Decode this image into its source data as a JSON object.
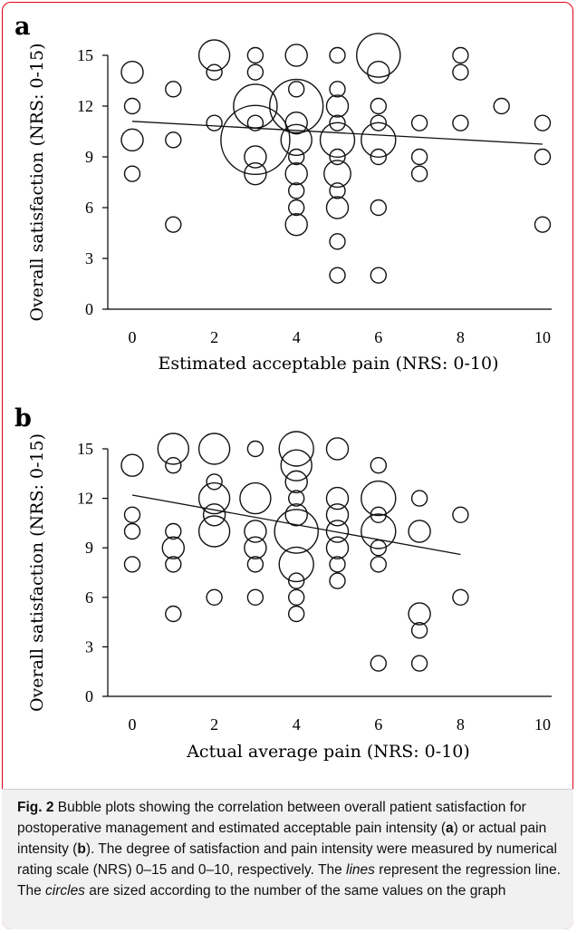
{
  "figure": {
    "caption_label": "Fig. 2",
    "caption_pre": " Bubble plots showing the correlation between overall patient satisfaction for postoperative management and estimated acceptable pain intensity (",
    "caption_a": "a",
    "caption_mid": ") or actual pain intensity (",
    "caption_b": "b",
    "caption_post1": "). The degree of satisfaction and pain intensity were measured by numerical rating scale (NRS) 0–15 and 0–10, respectively. The ",
    "caption_lines": "lines",
    "caption_post2": " represent the regression line. The ",
    "caption_circles": "circles",
    "caption_post3": " are sized according to the number of the same values on the graph"
  },
  "colors": {
    "frame": "#e2001a",
    "caption_bg": "#f1f1f1",
    "ink": "#111111"
  },
  "chart_data": [
    {
      "type": "scatter",
      "panel_label": "a",
      "xlabel": "Estimated acceptable pain (NRS: 0-10)",
      "ylabel": "Overall satisfaction (NRS: 0-15)",
      "xlim": [
        0,
        10
      ],
      "ylim": [
        0,
        15
      ],
      "xticks": [
        0,
        2,
        4,
        6,
        8,
        10
      ],
      "yticks": [
        0,
        3,
        6,
        9,
        12,
        15
      ],
      "grid": false,
      "regression": {
        "x": [
          0,
          10
        ],
        "y": [
          11.1,
          9.75
        ]
      },
      "points": [
        {
          "x": 0,
          "y": 14,
          "n": 2
        },
        {
          "x": 0,
          "y": 12,
          "n": 1
        },
        {
          "x": 0,
          "y": 10,
          "n": 2
        },
        {
          "x": 0,
          "y": 8,
          "n": 1
        },
        {
          "x": 1,
          "y": 13,
          "n": 1
        },
        {
          "x": 1,
          "y": 10,
          "n": 1
        },
        {
          "x": 1,
          "y": 5,
          "n": 1
        },
        {
          "x": 2,
          "y": 15,
          "n": 4
        },
        {
          "x": 2,
          "y": 14,
          "n": 1
        },
        {
          "x": 2,
          "y": 11,
          "n": 1
        },
        {
          "x": 3,
          "y": 15,
          "n": 1
        },
        {
          "x": 3,
          "y": 14,
          "n": 1
        },
        {
          "x": 3,
          "y": 12,
          "n": 8
        },
        {
          "x": 3,
          "y": 11,
          "n": 1
        },
        {
          "x": 3,
          "y": 10,
          "n": 20
        },
        {
          "x": 3,
          "y": 9,
          "n": 2
        },
        {
          "x": 3,
          "y": 8,
          "n": 2
        },
        {
          "x": 4,
          "y": 15,
          "n": 2
        },
        {
          "x": 4,
          "y": 13,
          "n": 1
        },
        {
          "x": 4,
          "y": 12,
          "n": 12
        },
        {
          "x": 4,
          "y": 11,
          "n": 2
        },
        {
          "x": 4,
          "y": 10,
          "n": 4
        },
        {
          "x": 4,
          "y": 9,
          "n": 1
        },
        {
          "x": 4,
          "y": 8,
          "n": 2
        },
        {
          "x": 4,
          "y": 7,
          "n": 1
        },
        {
          "x": 4,
          "y": 6,
          "n": 1
        },
        {
          "x": 4,
          "y": 5,
          "n": 2
        },
        {
          "x": 5,
          "y": 15,
          "n": 1
        },
        {
          "x": 5,
          "y": 13,
          "n": 1
        },
        {
          "x": 5,
          "y": 12,
          "n": 2
        },
        {
          "x": 5,
          "y": 11,
          "n": 1
        },
        {
          "x": 5,
          "y": 10,
          "n": 5
        },
        {
          "x": 5,
          "y": 9,
          "n": 1
        },
        {
          "x": 5,
          "y": 8,
          "n": 3
        },
        {
          "x": 5,
          "y": 7,
          "n": 1
        },
        {
          "x": 5,
          "y": 6,
          "n": 2
        },
        {
          "x": 5,
          "y": 4,
          "n": 1
        },
        {
          "x": 5,
          "y": 2,
          "n": 1
        },
        {
          "x": 6,
          "y": 15,
          "n": 8
        },
        {
          "x": 6,
          "y": 14,
          "n": 2
        },
        {
          "x": 6,
          "y": 12,
          "n": 1
        },
        {
          "x": 6,
          "y": 11,
          "n": 1
        },
        {
          "x": 6,
          "y": 10,
          "n": 5
        },
        {
          "x": 6,
          "y": 9,
          "n": 1
        },
        {
          "x": 6,
          "y": 6,
          "n": 1
        },
        {
          "x": 6,
          "y": 2,
          "n": 1
        },
        {
          "x": 7,
          "y": 11,
          "n": 1
        },
        {
          "x": 7,
          "y": 9,
          "n": 1
        },
        {
          "x": 7,
          "y": 8,
          "n": 1
        },
        {
          "x": 8,
          "y": 15,
          "n": 1
        },
        {
          "x": 8,
          "y": 14,
          "n": 1
        },
        {
          "x": 8,
          "y": 11,
          "n": 1
        },
        {
          "x": 9,
          "y": 12,
          "n": 1
        },
        {
          "x": 10,
          "y": 11,
          "n": 1
        },
        {
          "x": 10,
          "y": 9,
          "n": 1
        },
        {
          "x": 10,
          "y": 5,
          "n": 1
        }
      ]
    },
    {
      "type": "scatter",
      "panel_label": "b",
      "xlabel": "Actual average pain (NRS: 0-10)",
      "ylabel": "Overall satisfaction (NRS: 0-15)",
      "xlim": [
        0,
        10
      ],
      "ylim": [
        0,
        15
      ],
      "xticks": [
        0,
        2,
        4,
        6,
        8,
        10
      ],
      "yticks": [
        0,
        3,
        6,
        9,
        12,
        15
      ],
      "grid": false,
      "regression": {
        "x": [
          0,
          8
        ],
        "y": [
          12.2,
          8.6
        ]
      },
      "points": [
        {
          "x": 0,
          "y": 14,
          "n": 2
        },
        {
          "x": 0,
          "y": 11,
          "n": 1
        },
        {
          "x": 0,
          "y": 10,
          "n": 1
        },
        {
          "x": 0,
          "y": 8,
          "n": 1
        },
        {
          "x": 1,
          "y": 15,
          "n": 4
        },
        {
          "x": 1,
          "y": 14,
          "n": 1
        },
        {
          "x": 1,
          "y": 10,
          "n": 1
        },
        {
          "x": 1,
          "y": 9,
          "n": 2
        },
        {
          "x": 1,
          "y": 8,
          "n": 1
        },
        {
          "x": 1,
          "y": 5,
          "n": 1
        },
        {
          "x": 2,
          "y": 15,
          "n": 4
        },
        {
          "x": 2,
          "y": 13,
          "n": 1
        },
        {
          "x": 2,
          "y": 12,
          "n": 4
        },
        {
          "x": 2,
          "y": 11,
          "n": 2
        },
        {
          "x": 2,
          "y": 10,
          "n": 4
        },
        {
          "x": 2,
          "y": 6,
          "n": 1
        },
        {
          "x": 3,
          "y": 15,
          "n": 1
        },
        {
          "x": 3,
          "y": 12,
          "n": 4
        },
        {
          "x": 3,
          "y": 10,
          "n": 2
        },
        {
          "x": 3,
          "y": 9,
          "n": 2
        },
        {
          "x": 3,
          "y": 8,
          "n": 1
        },
        {
          "x": 3,
          "y": 6,
          "n": 1
        },
        {
          "x": 4,
          "y": 15,
          "n": 5
        },
        {
          "x": 4,
          "y": 14,
          "n": 4
        },
        {
          "x": 4,
          "y": 13,
          "n": 2
        },
        {
          "x": 4,
          "y": 12,
          "n": 1
        },
        {
          "x": 4,
          "y": 11,
          "n": 2
        },
        {
          "x": 4,
          "y": 10,
          "n": 8
        },
        {
          "x": 4,
          "y": 8,
          "n": 5
        },
        {
          "x": 4,
          "y": 7,
          "n": 1
        },
        {
          "x": 4,
          "y": 6,
          "n": 1
        },
        {
          "x": 4,
          "y": 5,
          "n": 1
        },
        {
          "x": 5,
          "y": 15,
          "n": 2
        },
        {
          "x": 5,
          "y": 12,
          "n": 2
        },
        {
          "x": 5,
          "y": 11,
          "n": 2
        },
        {
          "x": 5,
          "y": 10,
          "n": 2
        },
        {
          "x": 5,
          "y": 9,
          "n": 2
        },
        {
          "x": 5,
          "y": 8,
          "n": 1
        },
        {
          "x": 5,
          "y": 7,
          "n": 1
        },
        {
          "x": 6,
          "y": 14,
          "n": 1
        },
        {
          "x": 6,
          "y": 12,
          "n": 5
        },
        {
          "x": 6,
          "y": 11,
          "n": 1
        },
        {
          "x": 6,
          "y": 10,
          "n": 5
        },
        {
          "x": 6,
          "y": 9,
          "n": 1
        },
        {
          "x": 6,
          "y": 8,
          "n": 1
        },
        {
          "x": 6,
          "y": 2,
          "n": 1
        },
        {
          "x": 7,
          "y": 12,
          "n": 1
        },
        {
          "x": 7,
          "y": 10,
          "n": 2
        },
        {
          "x": 7,
          "y": 5,
          "n": 2
        },
        {
          "x": 7,
          "y": 4,
          "n": 1
        },
        {
          "x": 7,
          "y": 2,
          "n": 1
        },
        {
          "x": 8,
          "y": 11,
          "n": 1
        },
        {
          "x": 8,
          "y": 6,
          "n": 1
        }
      ]
    }
  ]
}
